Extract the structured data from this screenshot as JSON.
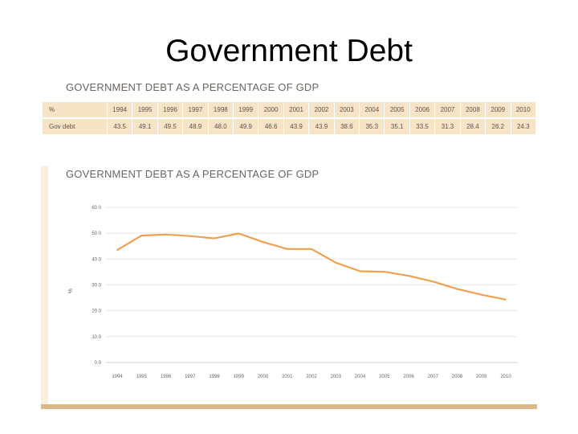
{
  "slide": {
    "title": "Government Debt"
  },
  "table": {
    "heading": "GOVERNMENT DEBT AS A PERCENTAGE OF GDP",
    "header_row": [
      "%",
      "1994",
      "1995",
      "1996",
      "1997",
      "1998",
      "1999",
      "2000",
      "2001",
      "2002",
      "2003",
      "2004",
      "2005",
      "2006",
      "2007",
      "2008",
      "2009",
      "2010"
    ],
    "data_row": [
      "Gov debt",
      "43.5",
      "49.1",
      "49.5",
      "48.9",
      "48.0",
      "49.9",
      "46.6",
      "43.9",
      "43.9",
      "38.6",
      "35.3",
      "35.1",
      "33.5",
      "31.3",
      "28.4",
      "26.2",
      "24.3"
    ]
  },
  "chart_data": {
    "type": "line",
    "title": "GOVERNMENT DEBT AS A PERCENTAGE OF GDP",
    "xlabel": "",
    "ylabel": "%",
    "x": [
      "1994",
      "1995",
      "1996",
      "1997",
      "1998",
      "1999",
      "2000",
      "2001",
      "2002",
      "2003",
      "2004",
      "2005",
      "2006",
      "2007",
      "2008",
      "2009",
      "2010"
    ],
    "series": [
      {
        "values": [
          43.5,
          49.1,
          49.5,
          48.9,
          48.0,
          49.9,
          46.6,
          43.9,
          43.9,
          38.6,
          35.3,
          35.1,
          33.5,
          31.3,
          28.4,
          26.2,
          24.3
        ]
      }
    ],
    "ylim": [
      0,
      60
    ],
    "yticks": [
      "0.0",
      "10.0",
      "20.0",
      "30.0",
      "40.0",
      "50.0",
      "60.0"
    ],
    "grid": true,
    "line_color": "#f0a050"
  }
}
